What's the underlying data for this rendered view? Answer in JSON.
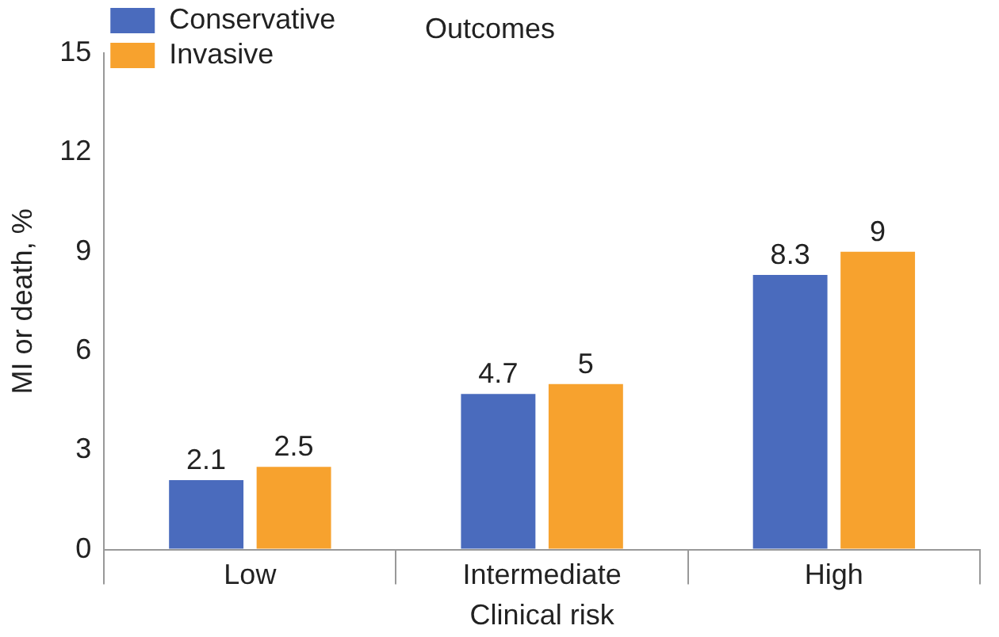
{
  "chart_data": {
    "type": "bar",
    "title": "Outcomes",
    "xlabel": "Clinical risk",
    "ylabel": "MI or death, %",
    "categories": [
      "Low",
      "Intermediate",
      "High"
    ],
    "series": [
      {
        "name": "Conservative",
        "color": "#4a6bbd",
        "values": [
          2.1,
          4.7,
          8.3
        ]
      },
      {
        "name": "Invasive",
        "color": "#f7a22e",
        "values": [
          2.5,
          5,
          9
        ]
      }
    ],
    "ylim": [
      0,
      15
    ],
    "yticks": [
      0,
      3,
      6,
      9,
      12,
      15
    ],
    "grid": false,
    "legend": "top left",
    "data_labels": true
  }
}
